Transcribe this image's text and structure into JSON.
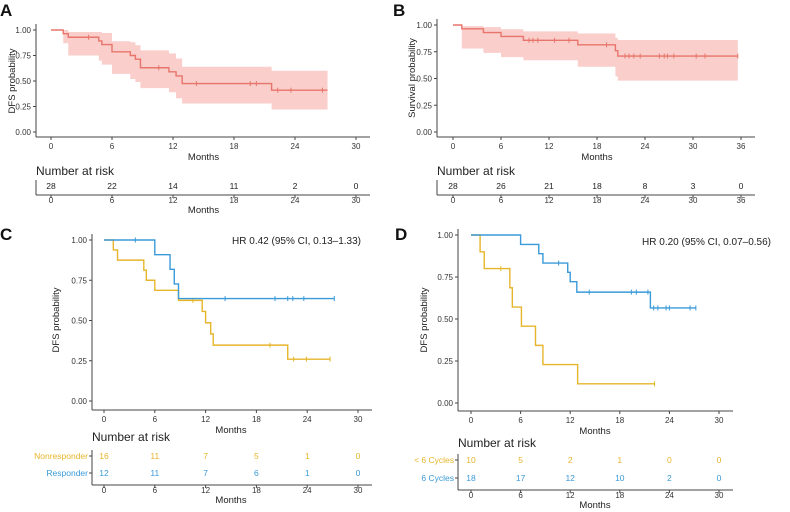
{
  "chart_data": [
    {
      "panel": "A",
      "type": "line",
      "subtype": "kaplan-meier-step",
      "xlabel": "Months",
      "ylabel": "DFS probability",
      "xlim": [
        0,
        30
      ],
      "ylim": [
        0,
        1
      ],
      "xticks": [
        0,
        6,
        12,
        18,
        24,
        30
      ],
      "yticks": [
        "0.00",
        "0.25",
        "0.50",
        "0.75",
        "1.00"
      ],
      "grid": false,
      "confidence_band": true,
      "series": [
        {
          "color": "#e8756b",
          "band_color": "#f8c6c2",
          "steps": [
            [
              0,
              1
            ],
            [
              1.2,
              0.964
            ],
            [
              1.7,
              0.929
            ],
            [
              4.7,
              0.893
            ],
            [
              5.0,
              0.857
            ],
            [
              6.0,
              0.786
            ],
            [
              7.8,
              0.75
            ],
            [
              8.3,
              0.714
            ],
            [
              8.8,
              0.63
            ],
            [
              11.6,
              0.59
            ],
            [
              12.3,
              0.55
            ],
            [
              12.9,
              0.475
            ],
            [
              21.7,
              0.41
            ]
          ],
          "end": 27.2,
          "lower": [
            1,
            0.87,
            0.75,
            0.7,
            0.66,
            0.57,
            0.52,
            0.49,
            0.43,
            0.39,
            0.33,
            0.28,
            0.22
          ],
          "upper": [
            1,
            1,
            0.98,
            0.98,
            0.97,
            0.89,
            0.88,
            0.85,
            0.8,
            0.77,
            0.72,
            0.64,
            0.6
          ],
          "censored": [
            3.7,
            10.6,
            14.3,
            19.6,
            20.2,
            22.3,
            23.6,
            26.7
          ]
        }
      ],
      "risk_table": {
        "title": "Number at risk",
        "xlabel": "Months",
        "times": [
          0,
          6,
          12,
          18,
          24,
          30
        ],
        "rows": [
          {
            "label": "",
            "color": "#222222",
            "values": [
              "28",
              "22",
              "14",
              "11",
              "2",
              "0"
            ]
          }
        ]
      }
    },
    {
      "panel": "B",
      "type": "line",
      "subtype": "kaplan-meier-step",
      "xlabel": "Months",
      "ylabel": "Survival probability",
      "xlim": [
        0,
        36
      ],
      "ylim": [
        0,
        1
      ],
      "xticks": [
        0,
        6,
        12,
        18,
        24,
        30,
        36
      ],
      "yticks": [
        "0.00",
        "0.25",
        "0.50",
        "0.75",
        "1.00"
      ],
      "grid": false,
      "confidence_band": true,
      "series": [
        {
          "color": "#e8756b",
          "band_color": "#f8c6c2",
          "steps": [
            [
              0,
              1
            ],
            [
              1.1,
              0.964
            ],
            [
              3.8,
              0.929
            ],
            [
              6.0,
              0.893
            ],
            [
              8.8,
              0.857
            ],
            [
              15.6,
              0.815
            ],
            [
              20.3,
              0.76
            ],
            [
              20.6,
              0.71
            ]
          ],
          "end": 35.6,
          "lower": [
            1,
            0.78,
            0.74,
            0.7,
            0.67,
            0.61,
            0.52,
            0.48
          ],
          "upper": [
            1,
            0.99,
            0.98,
            0.96,
            0.94,
            0.92,
            0.88,
            0.86
          ],
          "censored": [
            9.5,
            10.0,
            10.6,
            12.7,
            14.5,
            19.2,
            21.5,
            22.0,
            22.6,
            23.4,
            25.8,
            26.4,
            26.8,
            27.6,
            30.4,
            31.5,
            35.6
          ]
        }
      ],
      "risk_table": {
        "title": "Number at risk",
        "xlabel": "",
        "times": [
          0,
          6,
          12,
          18,
          24,
          30,
          36
        ],
        "rows": [
          {
            "label": "",
            "color": "#222222",
            "values": [
              "28",
              "26",
              "21",
              "18",
              "8",
              "3",
              "0"
            ]
          }
        ]
      }
    },
    {
      "panel": "C",
      "type": "line",
      "subtype": "kaplan-meier-step",
      "xlabel": "Months",
      "ylabel": "DFS probability",
      "xlim": [
        0,
        30
      ],
      "ylim": [
        0,
        1
      ],
      "xticks": [
        0,
        6,
        12,
        18,
        24,
        30
      ],
      "yticks": [
        "0.00",
        "0.25",
        "0.50",
        "0.75",
        "1.00"
      ],
      "grid": false,
      "confidence_band": false,
      "annotation": "HR 0.42 (95% CI, 0.13–1.33)",
      "series": [
        {
          "name": "Nonresponder",
          "color": "#e7b52b",
          "steps": [
            [
              0,
              1
            ],
            [
              1.1,
              0.938
            ],
            [
              1.6,
              0.875
            ],
            [
              4.7,
              0.8125
            ],
            [
              5.0,
              0.75
            ],
            [
              6.0,
              0.6875
            ],
            [
              8.8,
              0.625
            ],
            [
              11.6,
              0.556
            ],
            [
              12.0,
              0.486
            ],
            [
              12.6,
              0.417
            ],
            [
              12.9,
              0.347
            ],
            [
              21.7,
              0.26
            ]
          ],
          "end": 26.7,
          "censored": [
            10.5,
            19.6,
            22.4,
            23.9,
            26.7
          ]
        },
        {
          "name": "Responder",
          "color": "#3a9ad9",
          "steps": [
            [
              0,
              1
            ],
            [
              6.0,
              0.909
            ],
            [
              7.8,
              0.818
            ],
            [
              8.3,
              0.727
            ],
            [
              8.8,
              0.636
            ]
          ],
          "end": 27.2,
          "censored": [
            3.7,
            14.3,
            20.2,
            21.7,
            22.3,
            23.6,
            27.2
          ]
        }
      ],
      "risk_table": {
        "title": "Number at risk",
        "xlabel": "Months",
        "times": [
          0,
          6,
          12,
          18,
          24,
          30
        ],
        "rows": [
          {
            "label": "Nonresponder",
            "color": "#e7b52b",
            "values": [
              "16",
              "11",
              "7",
              "5",
              "1",
              "0"
            ]
          },
          {
            "label": "Responder",
            "color": "#3a9ad9",
            "values": [
              "12",
              "11",
              "7",
              "6",
              "1",
              "0"
            ]
          }
        ]
      }
    },
    {
      "panel": "D",
      "type": "line",
      "subtype": "kaplan-meier-step",
      "xlabel": "Months",
      "ylabel": "DFS probability",
      "xlim": [
        0,
        30
      ],
      "ylim": [
        0,
        1
      ],
      "xticks": [
        0,
        6,
        12,
        18,
        24,
        30
      ],
      "yticks": [
        "0.00",
        "0.25",
        "0.50",
        "0.75",
        "1.00"
      ],
      "grid": false,
      "confidence_band": false,
      "annotation": "HR 0.20 (95% CI, 0.07–0.56)",
      "series": [
        {
          "name": "< 6 Cycles",
          "color": "#e7b52b",
          "steps": [
            [
              0,
              1
            ],
            [
              1.1,
              0.9
            ],
            [
              1.6,
              0.8
            ],
            [
              4.7,
              0.686
            ],
            [
              5.0,
              0.571
            ],
            [
              6.1,
              0.457
            ],
            [
              7.8,
              0.343
            ],
            [
              8.7,
              0.229
            ],
            [
              12.9,
              0.114
            ]
          ],
          "end": 22.2,
          "censored": [
            3.6,
            22.2
          ]
        },
        {
          "name": "6 Cycles",
          "color": "#3a9ad9",
          "steps": [
            [
              0,
              1
            ],
            [
              6.0,
              0.944
            ],
            [
              8.2,
              0.889
            ],
            [
              8.7,
              0.833
            ],
            [
              11.7,
              0.778
            ],
            [
              12.0,
              0.722
            ],
            [
              12.8,
              0.66
            ],
            [
              21.7,
              0.566
            ]
          ],
          "end": 27.2,
          "censored": [
            10.6,
            14.3,
            19.4,
            20.0,
            21.4,
            22.1,
            22.6,
            23.6,
            24.0,
            26.5,
            27.2
          ]
        }
      ],
      "risk_table": {
        "title": "Number at risk",
        "xlabel": "Months",
        "times": [
          0,
          6,
          12,
          18,
          24,
          30
        ],
        "rows": [
          {
            "label": "< 6 Cycles",
            "color": "#e7b52b",
            "values": [
              "10",
              "5",
              "2",
              "1",
              "0",
              "0"
            ]
          },
          {
            "label": "6 Cycles",
            "color": "#3a9ad9",
            "values": [
              "18",
              "17",
              "12",
              "10",
              "2",
              "0"
            ]
          }
        ]
      }
    }
  ]
}
